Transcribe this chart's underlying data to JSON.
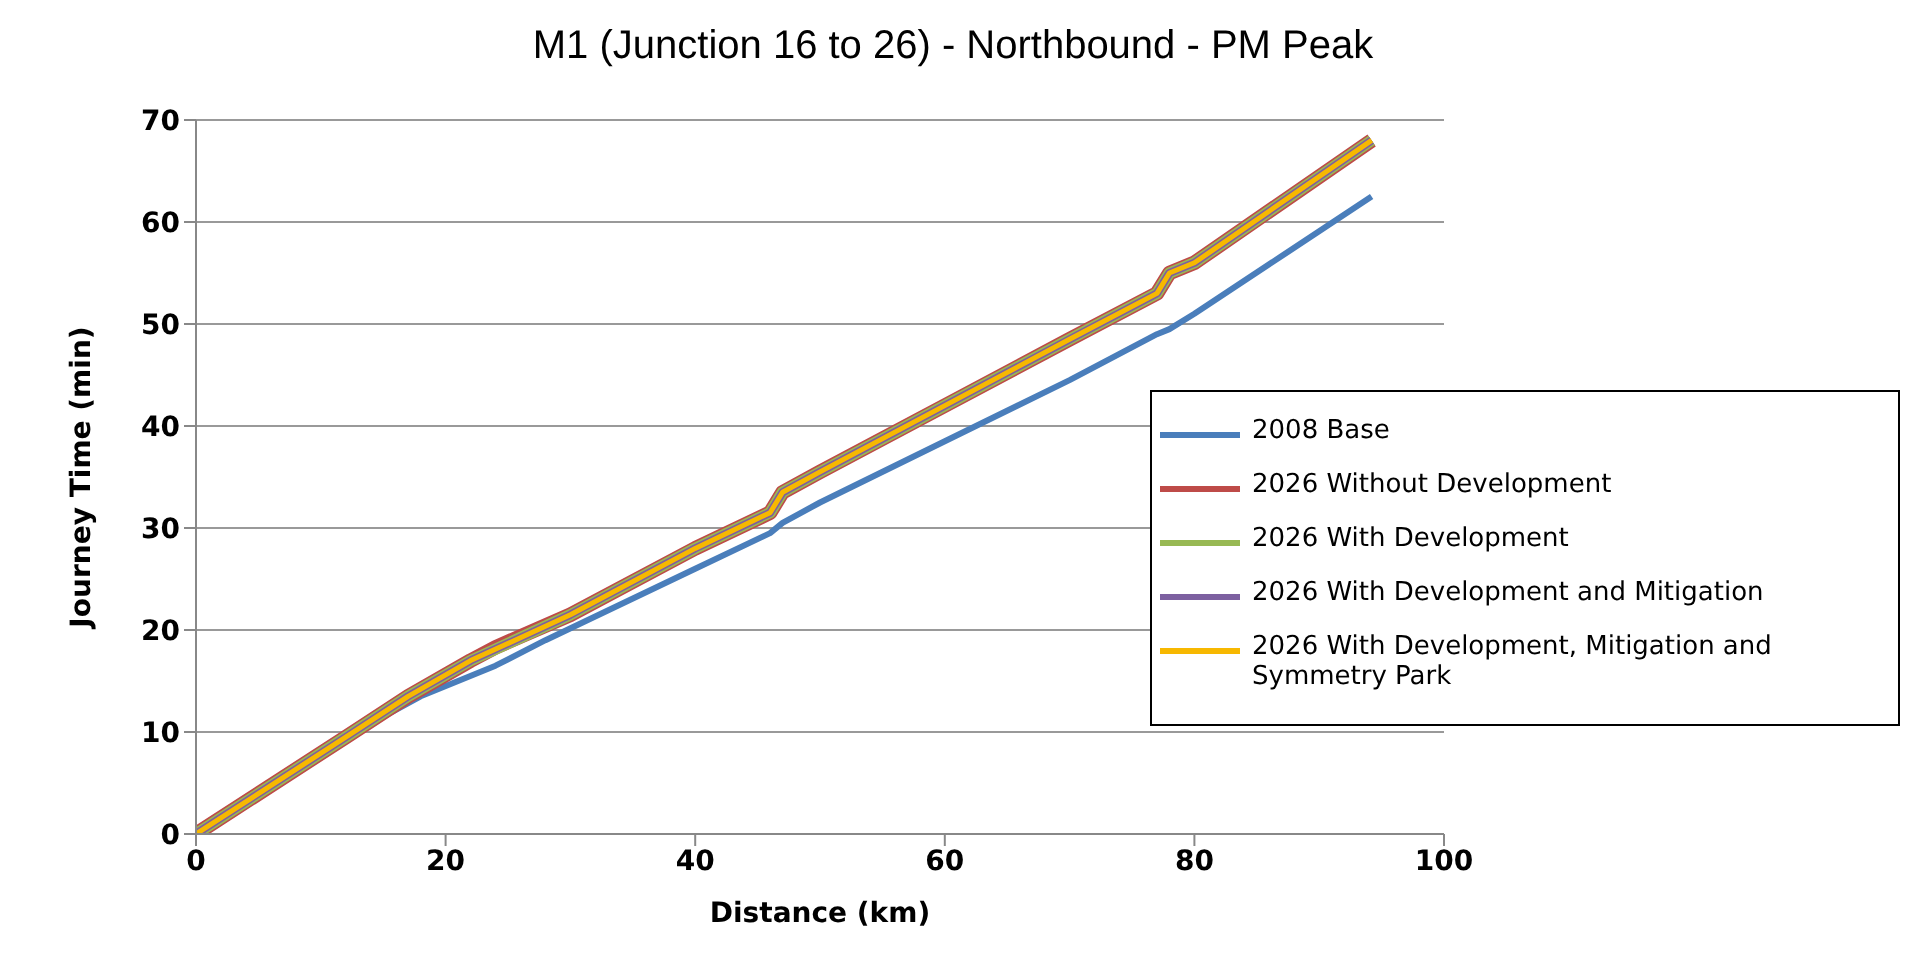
{
  "chart_data": {
    "type": "line",
    "title": "M1 (Junction 16 to 26) - Northbound  - PM Peak",
    "xlabel": "Distance (km)",
    "ylabel": "Journey Time (min)",
    "xlim": [
      0,
      100
    ],
    "xticks": [
      0,
      20,
      40,
      60,
      80,
      100
    ],
    "ylim": [
      0,
      70
    ],
    "yticks": [
      0,
      10,
      20,
      30,
      40,
      50,
      60,
      70
    ],
    "grid": "y",
    "legend": "right",
    "marker": "none",
    "line_style": "solid",
    "series": [
      {
        "name": "2008 Base",
        "color": "#4a7ebb",
        "x": [
          0,
          12,
          18,
          24,
          28,
          40,
          46,
          47,
          50,
          60,
          70,
          77,
          78,
          80,
          94.2
        ],
        "values": [
          0,
          9.5,
          13.5,
          16.5,
          19,
          26,
          29.5,
          30.5,
          32.5,
          38.5,
          44.5,
          49,
          49.5,
          51,
          62.5
        ]
      },
      {
        "name": "2026 Without Development",
        "color": "#be4b48",
        "x": [
          0,
          12,
          17,
          22,
          24,
          30,
          40,
          46,
          47,
          50,
          60,
          70,
          77,
          78,
          80,
          94.2
        ],
        "values": [
          0,
          9.5,
          13.5,
          17,
          18.3,
          21.5,
          28,
          31.5,
          33.5,
          35.5,
          42,
          48.5,
          53,
          55,
          56,
          68
        ]
      },
      {
        "name": "2026 With Development",
        "color": "#98b954",
        "x": [
          0,
          12,
          17,
          22,
          30,
          40,
          46,
          47,
          50,
          60,
          70,
          77,
          78,
          80,
          94.2
        ],
        "values": [
          0,
          9.5,
          13.5,
          17,
          21.5,
          28,
          31.5,
          33.5,
          35.5,
          42,
          48.5,
          53,
          55,
          56,
          68
        ]
      },
      {
        "name": "2026 With Development and Mitigation",
        "color": "#7d60a0",
        "x": [
          0,
          12,
          17,
          22,
          30,
          40,
          46,
          47,
          50,
          60,
          70,
          77,
          78,
          80,
          94.2
        ],
        "values": [
          0,
          9.5,
          13.5,
          17,
          21.5,
          28,
          31.5,
          33.5,
          35.5,
          42,
          48.5,
          53,
          55,
          56,
          68
        ]
      },
      {
        "name": "2026 With Development, Mitigation and Symmetry Park",
        "color": "#f7b800",
        "x": [
          0,
          12,
          17,
          22,
          30,
          40,
          46,
          47,
          50,
          60,
          70,
          77,
          78,
          80,
          94.2
        ],
        "values": [
          0,
          9.5,
          13.5,
          17,
          21.5,
          28,
          31.5,
          33.5,
          35.5,
          42,
          48.5,
          53,
          55,
          56,
          68
        ]
      }
    ]
  }
}
